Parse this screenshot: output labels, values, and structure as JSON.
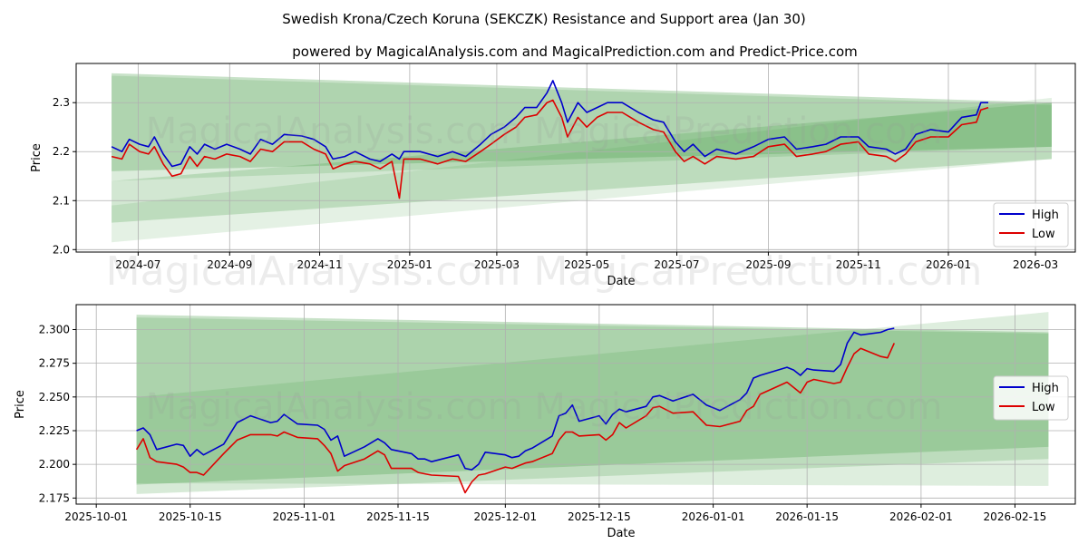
{
  "title": "Swedish Krona/Czech Koruna (SEKCZK) Resistance and Support area (Jan 30)",
  "subtitle": "powered by MagicalAnalysis.com and MagicalPrediction.com and Predict-Price.com",
  "watermark": "MagicalAnalysis.com    MagicalPrediction.com",
  "colors": {
    "high": "#0000cc",
    "low": "#dd0000",
    "band": "#4a9e4a"
  },
  "chart_data": [
    {
      "type": "line",
      "xlabel": "Date",
      "ylabel": "Price",
      "xlim": [
        "2024-05-20",
        "2026-03-28"
      ],
      "ylim": [
        1.995,
        2.38
      ],
      "xticks": [
        {
          "date": "2024-07-01",
          "label": "2024-07"
        },
        {
          "date": "2024-09-01",
          "label": "2024-09"
        },
        {
          "date": "2024-11-01",
          "label": "2024-11"
        },
        {
          "date": "2025-01-01",
          "label": "2025-01"
        },
        {
          "date": "2025-03-01",
          "label": "2025-03"
        },
        {
          "date": "2025-05-01",
          "label": "2025-05"
        },
        {
          "date": "2025-07-01",
          "label": "2025-07"
        },
        {
          "date": "2025-09-01",
          "label": "2025-09"
        },
        {
          "date": "2025-11-01",
          "label": "2025-11"
        },
        {
          "date": "2026-01-01",
          "label": "2026-01"
        },
        {
          "date": "2026-03-01",
          "label": "2026-03"
        }
      ],
      "yticks": [
        {
          "v": 2.0,
          "label": "2.0"
        },
        {
          "v": 2.1,
          "label": "2.1"
        },
        {
          "v": 2.2,
          "label": "2.2"
        },
        {
          "v": 2.3,
          "label": "2.3"
        }
      ],
      "grid": true,
      "legend": {
        "position": "bottom-right",
        "entries": [
          "High",
          "Low"
        ]
      },
      "bands": [
        {
          "start": "2024-06-13",
          "end": "2026-03-12",
          "start_range": [
            2.36,
            2.16
          ],
          "end_range": [
            2.3,
            2.21
          ],
          "alpha": 0.3
        },
        {
          "start": "2024-06-13",
          "end": "2026-03-12",
          "start_range": [
            2.355,
            2.14
          ],
          "end_range": [
            2.295,
            2.21
          ],
          "alpha": 0.2
        },
        {
          "start": "2024-06-13",
          "end": "2026-03-12",
          "start_range": [
            2.14,
            2.055
          ],
          "end_range": [
            2.3,
            2.185
          ],
          "alpha": 0.25
        },
        {
          "start": "2024-06-13",
          "end": "2026-03-12",
          "start_range": [
            2.09,
            2.015
          ],
          "end_range": [
            2.31,
            2.185
          ],
          "alpha": 0.15
        }
      ],
      "series_columns": [
        "date",
        "High",
        "Low"
      ],
      "rows": [
        [
          "2024-06-13",
          2.21,
          2.19
        ],
        [
          "2024-06-20",
          2.2,
          2.185
        ],
        [
          "2024-06-25",
          2.225,
          2.215
        ],
        [
          "2024-07-02",
          2.215,
          2.2
        ],
        [
          "2024-07-08",
          2.21,
          2.195
        ],
        [
          "2024-07-12",
          2.23,
          2.21
        ],
        [
          "2024-07-18",
          2.195,
          2.175
        ],
        [
          "2024-07-24",
          2.17,
          2.15
        ],
        [
          "2024-07-30",
          2.175,
          2.155
        ],
        [
          "2024-08-05",
          2.21,
          2.19
        ],
        [
          "2024-08-10",
          2.195,
          2.17
        ],
        [
          "2024-08-15",
          2.215,
          2.19
        ],
        [
          "2024-08-22",
          2.205,
          2.185
        ],
        [
          "2024-08-30",
          2.215,
          2.195
        ],
        [
          "2024-09-08",
          2.205,
          2.19
        ],
        [
          "2024-09-15",
          2.195,
          2.18
        ],
        [
          "2024-09-22",
          2.225,
          2.205
        ],
        [
          "2024-09-30",
          2.215,
          2.2
        ],
        [
          "2024-10-08",
          2.235,
          2.22
        ],
        [
          "2024-10-20",
          2.232,
          2.22
        ],
        [
          "2024-10-28",
          2.225,
          2.205
        ],
        [
          "2024-11-05",
          2.21,
          2.195
        ],
        [
          "2024-11-10",
          2.185,
          2.165
        ],
        [
          "2024-11-18",
          2.19,
          2.175
        ],
        [
          "2024-11-25",
          2.2,
          2.18
        ],
        [
          "2024-12-05",
          2.185,
          2.175
        ],
        [
          "2024-12-12",
          2.18,
          2.165
        ],
        [
          "2024-12-20",
          2.195,
          2.18
        ],
        [
          "2024-12-25",
          2.185,
          2.105
        ],
        [
          "2024-12-28",
          2.2,
          2.185
        ],
        [
          "2025-01-08",
          2.2,
          2.185
        ],
        [
          "2025-01-20",
          2.19,
          2.175
        ],
        [
          "2025-01-30",
          2.2,
          2.185
        ],
        [
          "2025-02-08",
          2.19,
          2.18
        ],
        [
          "2025-02-18",
          2.215,
          2.2
        ],
        [
          "2025-02-25",
          2.235,
          2.215
        ],
        [
          "2025-03-06",
          2.25,
          2.235
        ],
        [
          "2025-03-14",
          2.27,
          2.25
        ],
        [
          "2025-03-20",
          2.29,
          2.27
        ],
        [
          "2025-03-28",
          2.29,
          2.275
        ],
        [
          "2025-04-04",
          2.32,
          2.3
        ],
        [
          "2025-04-08",
          2.345,
          2.305
        ],
        [
          "2025-04-14",
          2.3,
          2.27
        ],
        [
          "2025-04-18",
          2.26,
          2.23
        ],
        [
          "2025-04-25",
          2.3,
          2.27
        ],
        [
          "2025-05-01",
          2.28,
          2.25
        ],
        [
          "2025-05-08",
          2.29,
          2.27
        ],
        [
          "2025-05-15",
          2.3,
          2.28
        ],
        [
          "2025-05-25",
          2.3,
          2.28
        ],
        [
          "2025-06-05",
          2.28,
          2.26
        ],
        [
          "2025-06-15",
          2.265,
          2.245
        ],
        [
          "2025-06-22",
          2.26,
          2.24
        ],
        [
          "2025-06-30",
          2.22,
          2.2
        ],
        [
          "2025-07-06",
          2.2,
          2.18
        ],
        [
          "2025-07-12",
          2.215,
          2.19
        ],
        [
          "2025-07-20",
          2.19,
          2.175
        ],
        [
          "2025-07-28",
          2.205,
          2.19
        ],
        [
          "2025-08-10",
          2.195,
          2.185
        ],
        [
          "2025-08-22",
          2.21,
          2.19
        ],
        [
          "2025-09-01",
          2.225,
          2.21
        ],
        [
          "2025-09-12",
          2.23,
          2.215
        ],
        [
          "2025-09-20",
          2.205,
          2.19
        ],
        [
          "2025-10-01",
          2.21,
          2.195
        ],
        [
          "2025-10-10",
          2.215,
          2.2
        ],
        [
          "2025-10-20",
          2.23,
          2.215
        ],
        [
          "2025-11-01",
          2.23,
          2.22
        ],
        [
          "2025-11-08",
          2.21,
          2.195
        ],
        [
          "2025-11-20",
          2.205,
          2.19
        ],
        [
          "2025-11-26",
          2.195,
          2.18
        ],
        [
          "2025-12-03",
          2.205,
          2.195
        ],
        [
          "2025-12-10",
          2.235,
          2.22
        ],
        [
          "2025-12-20",
          2.245,
          2.23
        ],
        [
          "2026-01-01",
          2.24,
          2.23
        ],
        [
          "2026-01-10",
          2.27,
          2.255
        ],
        [
          "2026-01-20",
          2.275,
          2.26
        ],
        [
          "2026-01-23",
          2.3,
          2.285
        ],
        [
          "2026-01-28",
          2.3,
          2.29
        ]
      ]
    },
    {
      "type": "line",
      "xlabel": "Date",
      "ylabel": "Price",
      "xlim": [
        "2025-09-28",
        "2026-02-24"
      ],
      "ylim": [
        2.1705,
        2.3185
      ],
      "xticks": [
        {
          "date": "2025-10-01",
          "label": "2025-10-01"
        },
        {
          "date": "2025-10-15",
          "label": "2025-10-15"
        },
        {
          "date": "2025-11-01",
          "label": "2025-11-01"
        },
        {
          "date": "2025-11-15",
          "label": "2025-11-15"
        },
        {
          "date": "2025-12-01",
          "label": "2025-12-01"
        },
        {
          "date": "2025-12-15",
          "label": "2025-12-15"
        },
        {
          "date": "2026-01-01",
          "label": "2026-01-01"
        },
        {
          "date": "2026-01-15",
          "label": "2026-01-15"
        },
        {
          "date": "2026-02-01",
          "label": "2026-02-01"
        },
        {
          "date": "2026-02-15",
          "label": "2026-02-15"
        }
      ],
      "yticks": [
        {
          "v": 2.175,
          "label": "2.175"
        },
        {
          "v": 2.2,
          "label": "2.200"
        },
        {
          "v": 2.225,
          "label": "2.225"
        },
        {
          "v": 2.25,
          "label": "2.250"
        },
        {
          "v": 2.275,
          "label": "2.275"
        },
        {
          "v": 2.3,
          "label": "2.300"
        }
      ],
      "grid": true,
      "legend": {
        "position": "center-right",
        "entries": [
          "High",
          "Low"
        ]
      },
      "bands": [
        {
          "start": "2025-10-07",
          "end": "2026-02-20",
          "start_range": [
            2.311,
            2.185
          ],
          "end_range": [
            2.298,
            2.213
          ],
          "alpha": 0.3
        },
        {
          "start": "2025-10-07",
          "end": "2026-02-20",
          "start_range": [
            2.309,
            2.178
          ],
          "end_range": [
            2.297,
            2.204
          ],
          "alpha": 0.22
        },
        {
          "start": "2025-10-07",
          "end": "2026-02-20",
          "start_range": [
            2.25,
            2.186
          ],
          "end_range": [
            2.313,
            2.184
          ],
          "alpha": 0.18
        }
      ],
      "series_columns": [
        "date",
        "High",
        "Low"
      ],
      "rows": [
        [
          "2025-10-07",
          2.225,
          2.211
        ],
        [
          "2025-10-08",
          2.227,
          2.219
        ],
        [
          "2025-10-09",
          2.222,
          2.205
        ],
        [
          "2025-10-10",
          2.211,
          2.202
        ],
        [
          "2025-10-13",
          2.215,
          2.2
        ],
        [
          "2025-10-14",
          2.214,
          2.198
        ],
        [
          "2025-10-15",
          2.206,
          2.194
        ],
        [
          "2025-10-16",
          2.211,
          2.194
        ],
        [
          "2025-10-17",
          2.207,
          2.192
        ],
        [
          "2025-10-20",
          2.215,
          2.208
        ],
        [
          "2025-10-22",
          2.231,
          2.218
        ],
        [
          "2025-10-24",
          2.236,
          2.222
        ],
        [
          "2025-10-27",
          2.231,
          2.222
        ],
        [
          "2025-10-28",
          2.232,
          2.221
        ],
        [
          "2025-10-29",
          2.237,
          2.224
        ],
        [
          "2025-10-31",
          2.23,
          2.22
        ],
        [
          "2025-11-03",
          2.229,
          2.219
        ],
        [
          "2025-11-04",
          2.226,
          2.214
        ],
        [
          "2025-11-05",
          2.218,
          2.208
        ],
        [
          "2025-11-06",
          2.221,
          2.195
        ],
        [
          "2025-11-07",
          2.206,
          2.199
        ],
        [
          "2025-11-10",
          2.213,
          2.204
        ],
        [
          "2025-11-12",
          2.219,
          2.21
        ],
        [
          "2025-11-13",
          2.216,
          2.207
        ],
        [
          "2025-11-14",
          2.211,
          2.197
        ],
        [
          "2025-11-17",
          2.208,
          2.197
        ],
        [
          "2025-11-18",
          2.204,
          2.194
        ],
        [
          "2025-11-19",
          2.204,
          2.193
        ],
        [
          "2025-11-20",
          2.202,
          2.192
        ],
        [
          "2025-11-24",
          2.207,
          2.191
        ],
        [
          "2025-11-25",
          2.197,
          2.179
        ],
        [
          "2025-11-26",
          2.196,
          2.187
        ],
        [
          "2025-11-27",
          2.2,
          2.192
        ],
        [
          "2025-11-28",
          2.209,
          2.193
        ],
        [
          "2025-12-01",
          2.207,
          2.198
        ],
        [
          "2025-12-02",
          2.205,
          2.197
        ],
        [
          "2025-12-03",
          2.206,
          2.199
        ],
        [
          "2025-12-04",
          2.21,
          2.201
        ],
        [
          "2025-12-05",
          2.212,
          2.202
        ],
        [
          "2025-12-08",
          2.221,
          2.208
        ],
        [
          "2025-12-09",
          2.236,
          2.218
        ],
        [
          "2025-12-10",
          2.238,
          2.224
        ],
        [
          "2025-12-11",
          2.244,
          2.224
        ],
        [
          "2025-12-12",
          2.232,
          2.221
        ],
        [
          "2025-12-15",
          2.236,
          2.222
        ],
        [
          "2025-12-16",
          2.23,
          2.218
        ],
        [
          "2025-12-17",
          2.237,
          2.222
        ],
        [
          "2025-12-18",
          2.241,
          2.231
        ],
        [
          "2025-12-19",
          2.239,
          2.227
        ],
        [
          "2025-12-22",
          2.243,
          2.236
        ],
        [
          "2025-12-23",
          2.25,
          2.242
        ],
        [
          "2025-12-24",
          2.251,
          2.243
        ],
        [
          "2025-12-26",
          2.247,
          2.238
        ],
        [
          "2025-12-29",
          2.252,
          2.239
        ],
        [
          "2025-12-31",
          2.244,
          2.229
        ],
        [
          "2026-01-02",
          2.24,
          2.228
        ],
        [
          "2026-01-05",
          2.248,
          2.232
        ],
        [
          "2026-01-06",
          2.253,
          2.24
        ],
        [
          "2026-01-07",
          2.264,
          2.243
        ],
        [
          "2026-01-08",
          2.266,
          2.252
        ],
        [
          "2026-01-12",
          2.272,
          2.261
        ],
        [
          "2026-01-13",
          2.27,
          2.257
        ],
        [
          "2026-01-14",
          2.266,
          2.253
        ],
        [
          "2026-01-15",
          2.271,
          2.261
        ],
        [
          "2026-01-16",
          2.27,
          2.263
        ],
        [
          "2026-01-19",
          2.269,
          2.26
        ],
        [
          "2026-01-20",
          2.274,
          2.261
        ],
        [
          "2026-01-21",
          2.29,
          2.272
        ],
        [
          "2026-01-22",
          2.298,
          2.282
        ],
        [
          "2026-01-23",
          2.296,
          2.286
        ],
        [
          "2026-01-26",
          2.298,
          2.28
        ],
        [
          "2026-01-27",
          2.3,
          2.279
        ],
        [
          "2026-01-28",
          2.301,
          2.29
        ]
      ]
    }
  ]
}
